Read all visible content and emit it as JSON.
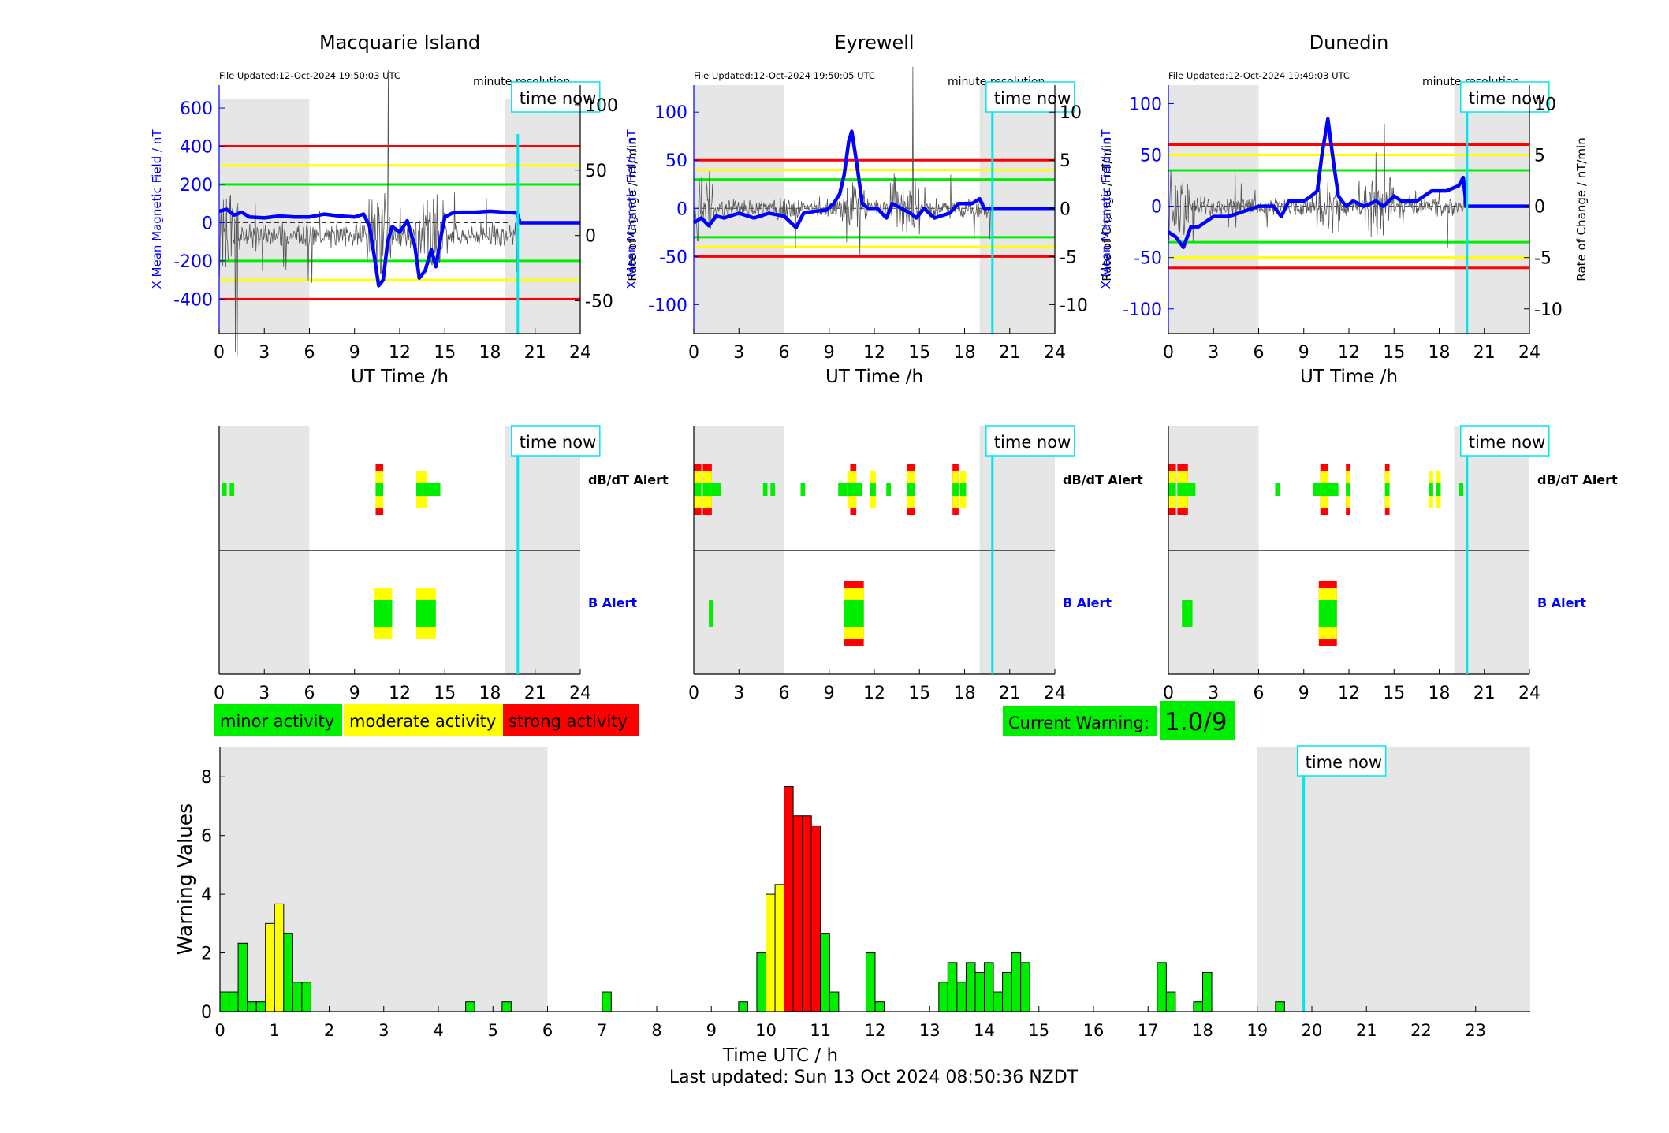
{
  "stations": [
    {
      "name": "Macquarie Island",
      "updated": "File Updated:12-Oct-2024 19:50:03 UTC",
      "resolution": "minute resolution",
      "time_now_label": "time now",
      "ylabel_left": "X Mean Magnetic Field / nT",
      "ylabel_right": "Rate of Change / nT/min",
      "xlabel": "UT Time /h",
      "dbdt_label": "dB/dT Alert",
      "b_label": "B Alert"
    },
    {
      "name": "Eyrewell",
      "updated": "File Updated:12-Oct-2024 19:50:05 UTC",
      "resolution": "minute resolution",
      "time_now_label": "time now",
      "ylabel_left": "X Mean Magnetic Field / nT",
      "ylabel_right": "Rate of Change / nT/min",
      "xlabel": "UT Time /h",
      "dbdt_label": "dB/dT Alert",
      "b_label": "B Alert"
    },
    {
      "name": "Dunedin",
      "updated": "File Updated:12-Oct-2024 19:49:03 UTC",
      "resolution": "minute resolution",
      "time_now_label": "time now",
      "ylabel_left": "X Mean Magnetic Field / nT",
      "ylabel_right": "Rate of Change / nT/min",
      "xlabel": "UT Time /h",
      "dbdt_label": "dB/dT Alert",
      "b_label": "B Alert"
    }
  ],
  "legend": {
    "minor": "minor activity",
    "moderate": "moderate activity",
    "strong": "strong activity"
  },
  "current_warning": {
    "label": "Current Warning:",
    "value": "1.0/9"
  },
  "footer": "Last updated: Sun 13 Oct 2024 08:50:36 NZDT",
  "colors": {
    "minor": "#00ee00",
    "moderate": "#ffff00",
    "strong": "#ff0000",
    "time_now": "#00e5ee",
    "field": "#0000ff",
    "shade": "#e6e6e6"
  },
  "chart_data": [
    {
      "type": "line",
      "station": "Macquarie Island",
      "title": "Macquarie Island",
      "xlabel": "UT Time /h",
      "ylabel": "X Mean Magnetic Field / nT",
      "ylabel_right": "Rate of Change / nT/min",
      "xlim": [
        0,
        24
      ],
      "xticks": [
        0,
        3,
        6,
        9,
        12,
        15,
        18,
        21,
        24
      ],
      "ylim": [
        -580,
        720
      ],
      "yticks": [
        -400,
        -200,
        0,
        200,
        400,
        600
      ],
      "ylim_right": [
        -75,
        115
      ],
      "yticks_right": [
        -50,
        0,
        50,
        100
      ],
      "thresholds": [
        {
          "value": 400,
          "color": "red"
        },
        {
          "value": 300,
          "color": "yellow"
        },
        {
          "value": 200,
          "color": "green"
        },
        {
          "value": -200,
          "color": "green"
        },
        {
          "value": -300,
          "color": "yellow"
        },
        {
          "value": -400,
          "color": "red"
        }
      ],
      "night_shade": [
        [
          0,
          6
        ],
        [
          19,
          24
        ]
      ],
      "time_now": 19.85,
      "series": [
        {
          "values": [
            [
              0,
              60
            ],
            [
              0.5,
              70
            ],
            [
              1,
              40
            ],
            [
              1.5,
              55
            ],
            [
              2,
              30
            ],
            [
              3,
              25
            ],
            [
              4,
              35
            ],
            [
              5,
              30
            ],
            [
              6,
              30
            ],
            [
              7,
              45
            ],
            [
              8,
              35
            ],
            [
              9,
              30
            ],
            [
              9.6,
              45
            ],
            [
              10,
              -20
            ],
            [
              10.3,
              -170
            ],
            [
              10.6,
              -330
            ],
            [
              10.9,
              -300
            ],
            [
              11.2,
              -100
            ],
            [
              11.5,
              -20
            ],
            [
              12,
              -50
            ],
            [
              12.5,
              10
            ],
            [
              13,
              -120
            ],
            [
              13.3,
              -290
            ],
            [
              13.7,
              -250
            ],
            [
              14.1,
              -140
            ],
            [
              14.4,
              -230
            ],
            [
              14.7,
              -90
            ],
            [
              15,
              30
            ],
            [
              15.5,
              50
            ],
            [
              16,
              55
            ],
            [
              17,
              55
            ],
            [
              18,
              60
            ],
            [
              19,
              55
            ],
            [
              19.8,
              50
            ],
            [
              20,
              0
            ],
            [
              24,
              0
            ]
          ]
        }
      ]
    },
    {
      "type": "line",
      "station": "Eyrewell",
      "title": "Eyrewell",
      "xlabel": "UT Time /h",
      "ylabel": "X Mean Magnetic Field / nT",
      "ylabel_right": "Rate of Change / nT/min",
      "xlim": [
        0,
        24
      ],
      "xticks": [
        0,
        3,
        6,
        9,
        12,
        15,
        18,
        21,
        24
      ],
      "ylim": [
        -130,
        128
      ],
      "yticks": [
        -100,
        -50,
        0,
        50,
        100
      ],
      "ylim_right": [
        -13,
        12.8
      ],
      "yticks_right": [
        -10,
        -5,
        0,
        5,
        10
      ],
      "thresholds": [
        {
          "value": 50,
          "color": "red"
        },
        {
          "value": 40,
          "color": "yellow"
        },
        {
          "value": 30,
          "color": "green"
        },
        {
          "value": -30,
          "color": "green"
        },
        {
          "value": -40,
          "color": "yellow"
        },
        {
          "value": -50,
          "color": "red"
        }
      ],
      "night_shade": [
        [
          0,
          6
        ],
        [
          19,
          24
        ]
      ],
      "time_now": 19.85,
      "series": [
        {
          "values": [
            [
              0,
              -15
            ],
            [
              0.5,
              -10
            ],
            [
              1,
              -18
            ],
            [
              1.5,
              -8
            ],
            [
              2,
              -10
            ],
            [
              3,
              -5
            ],
            [
              4,
              -10
            ],
            [
              5,
              -5
            ],
            [
              6,
              -8
            ],
            [
              6.8,
              -20
            ],
            [
              7.3,
              -5
            ],
            [
              8,
              -3
            ],
            [
              8.8,
              -2
            ],
            [
              9.3,
              5
            ],
            [
              9.7,
              15
            ],
            [
              10,
              35
            ],
            [
              10.3,
              70
            ],
            [
              10.5,
              80
            ],
            [
              10.8,
              50
            ],
            [
              11.2,
              5
            ],
            [
              11.6,
              0
            ],
            [
              12.2,
              0
            ],
            [
              12.8,
              -10
            ],
            [
              13.2,
              5
            ],
            [
              13.8,
              0
            ],
            [
              14.4,
              -5
            ],
            [
              14.8,
              -10
            ],
            [
              15.3,
              0
            ],
            [
              16,
              -10
            ],
            [
              17,
              -5
            ],
            [
              17.6,
              5
            ],
            [
              18.5,
              5
            ],
            [
              19,
              10
            ],
            [
              19.3,
              0
            ],
            [
              24,
              0
            ]
          ]
        }
      ]
    },
    {
      "type": "line",
      "station": "Dunedin",
      "title": "Dunedin",
      "xlabel": "UT Time /h",
      "ylabel": "X Mean Magnetic Field / nT",
      "ylabel_right": "Rate of Change / nT/min",
      "xlim": [
        0,
        24
      ],
      "xticks": [
        0,
        3,
        6,
        9,
        12,
        15,
        18,
        21,
        24
      ],
      "ylim": [
        -124,
        118
      ],
      "yticks": [
        -100,
        -50,
        0,
        50,
        100
      ],
      "ylim_right": [
        -12.4,
        11.8
      ],
      "yticks_right": [
        -10,
        -5,
        0,
        5,
        10
      ],
      "thresholds": [
        {
          "value": 60,
          "color": "red"
        },
        {
          "value": 50,
          "color": "yellow"
        },
        {
          "value": 35,
          "color": "green"
        },
        {
          "value": -35,
          "color": "green"
        },
        {
          "value": -50,
          "color": "yellow"
        },
        {
          "value": -60,
          "color": "red"
        }
      ],
      "night_shade": [
        [
          0,
          6
        ],
        [
          19,
          24
        ]
      ],
      "time_now": 19.85,
      "series": [
        {
          "values": [
            [
              0,
              -25
            ],
            [
              0.5,
              -30
            ],
            [
              1,
              -40
            ],
            [
              1.5,
              -20
            ],
            [
              2,
              -20
            ],
            [
              3,
              -10
            ],
            [
              4,
              -10
            ],
            [
              5,
              -5
            ],
            [
              6,
              0
            ],
            [
              7,
              0
            ],
            [
              7.5,
              -10
            ],
            [
              8,
              5
            ],
            [
              9,
              5
            ],
            [
              9.5,
              10
            ],
            [
              9.9,
              15
            ],
            [
              10.2,
              50
            ],
            [
              10.6,
              85
            ],
            [
              11,
              40
            ],
            [
              11.3,
              10
            ],
            [
              11.8,
              0
            ],
            [
              12.3,
              5
            ],
            [
              13,
              0
            ],
            [
              13.8,
              5
            ],
            [
              14.3,
              0
            ],
            [
              15,
              10
            ],
            [
              15.5,
              5
            ],
            [
              16.5,
              5
            ],
            [
              17.5,
              15
            ],
            [
              18.5,
              15
            ],
            [
              19.3,
              20
            ],
            [
              19.6,
              28
            ],
            [
              19.8,
              0
            ],
            [
              24,
              0
            ]
          ]
        }
      ]
    },
    {
      "type": "bar",
      "title": "",
      "xlabel": "Time UTC / h",
      "ylabel": "Warning Values",
      "xlim": [
        0,
        24
      ],
      "ylim": [
        0,
        9
      ],
      "xticks": [
        0,
        1,
        2,
        3,
        4,
        5,
        6,
        7,
        8,
        9,
        10,
        11,
        12,
        13,
        14,
        15,
        16,
        17,
        18,
        19,
        20,
        21,
        22,
        23
      ],
      "yticks": [
        0,
        2,
        4,
        6,
        8
      ],
      "night_shade": [
        [
          0,
          6
        ],
        [
          19,
          24
        ]
      ],
      "time_now": 19.85,
      "bin_width": 0.1667,
      "bars": [
        {
          "x": 0,
          "value": 0.67
        },
        {
          "x": 0.167,
          "value": 0.67
        },
        {
          "x": 0.333,
          "value": 2.33
        },
        {
          "x": 0.5,
          "value": 0.33
        },
        {
          "x": 0.667,
          "value": 0.33
        },
        {
          "x": 0.833,
          "value": 3.0
        },
        {
          "x": 1.0,
          "value": 3.67
        },
        {
          "x": 1.167,
          "value": 2.67
        },
        {
          "x": 1.333,
          "value": 1.0
        },
        {
          "x": 1.5,
          "value": 1.0
        },
        {
          "x": 4.5,
          "value": 0.33
        },
        {
          "x": 5.167,
          "value": 0.33
        },
        {
          "x": 7.0,
          "value": 0.67
        },
        {
          "x": 9.5,
          "value": 0.33
        },
        {
          "x": 9.833,
          "value": 2.0
        },
        {
          "x": 10.0,
          "value": 4.0
        },
        {
          "x": 10.167,
          "value": 4.33
        },
        {
          "x": 10.333,
          "value": 7.67
        },
        {
          "x": 10.5,
          "value": 6.67
        },
        {
          "x": 10.667,
          "value": 6.67
        },
        {
          "x": 10.833,
          "value": 6.33
        },
        {
          "x": 11.0,
          "value": 2.67
        },
        {
          "x": 11.167,
          "value": 0.67
        },
        {
          "x": 11.833,
          "value": 2.0
        },
        {
          "x": 12.0,
          "value": 0.33
        },
        {
          "x": 13.167,
          "value": 1.0
        },
        {
          "x": 13.333,
          "value": 1.67
        },
        {
          "x": 13.5,
          "value": 1.0
        },
        {
          "x": 13.667,
          "value": 1.67
        },
        {
          "x": 13.833,
          "value": 1.33
        },
        {
          "x": 14.0,
          "value": 1.67
        },
        {
          "x": 14.167,
          "value": 0.67
        },
        {
          "x": 14.333,
          "value": 1.33
        },
        {
          "x": 14.5,
          "value": 2.0
        },
        {
          "x": 14.667,
          "value": 1.67
        },
        {
          "x": 17.167,
          "value": 1.67
        },
        {
          "x": 17.333,
          "value": 0.67
        },
        {
          "x": 17.833,
          "value": 0.33
        },
        {
          "x": 18.0,
          "value": 1.33
        },
        {
          "x": 19.333,
          "value": 0.33
        }
      ]
    }
  ],
  "alerts": [
    {
      "station": "Macquarie Island",
      "dbdt": [
        {
          "start": 0.2,
          "end": 0.5,
          "level": "minor"
        },
        {
          "start": 0.7,
          "end": 1.0,
          "level": "minor"
        },
        {
          "start": 10.4,
          "end": 10.9,
          "level": "strong"
        },
        {
          "start": 13.1,
          "end": 13.5,
          "level": "moderate"
        },
        {
          "start": 13.5,
          "end": 13.8,
          "level": "moderate"
        },
        {
          "start": 13.8,
          "end": 14.7,
          "level": "minor"
        }
      ],
      "b": [
        {
          "start": 10.3,
          "end": 11.5,
          "level": "moderate"
        },
        {
          "start": 13.1,
          "end": 14.4,
          "level": "moderate"
        }
      ]
    },
    {
      "station": "Eyrewell",
      "dbdt": [
        {
          "start": 0,
          "end": 0.5,
          "level": "strong"
        },
        {
          "start": 0.6,
          "end": 1.2,
          "level": "strong"
        },
        {
          "start": 1.2,
          "end": 1.8,
          "level": "minor"
        },
        {
          "start": 4.6,
          "end": 4.9,
          "level": "minor"
        },
        {
          "start": 5.1,
          "end": 5.4,
          "level": "minor"
        },
        {
          "start": 7.1,
          "end": 7.4,
          "level": "minor"
        },
        {
          "start": 9.6,
          "end": 10.2,
          "level": "minor"
        },
        {
          "start": 10.2,
          "end": 10.8,
          "level": "moderate"
        },
        {
          "start": 10.4,
          "end": 10.8,
          "level": "strong"
        },
        {
          "start": 10.8,
          "end": 11.2,
          "level": "minor"
        },
        {
          "start": 11.7,
          "end": 12.1,
          "level": "moderate"
        },
        {
          "start": 12.8,
          "end": 13.1,
          "level": "minor"
        },
        {
          "start": 14.2,
          "end": 14.7,
          "level": "strong"
        },
        {
          "start": 17.2,
          "end": 17.6,
          "level": "strong"
        },
        {
          "start": 17.7,
          "end": 18.1,
          "level": "moderate"
        }
      ],
      "b": [
        {
          "start": 1.0,
          "end": 1.3,
          "level": "minor"
        },
        {
          "start": 10.0,
          "end": 11.3,
          "level": "strong"
        }
      ]
    },
    {
      "station": "Dunedin",
      "dbdt": [
        {
          "start": 0,
          "end": 0.5,
          "level": "strong"
        },
        {
          "start": 0.6,
          "end": 1.3,
          "level": "strong"
        },
        {
          "start": 1.3,
          "end": 1.8,
          "level": "minor"
        },
        {
          "start": 7.1,
          "end": 7.4,
          "level": "minor"
        },
        {
          "start": 9.6,
          "end": 10.1,
          "level": "minor"
        },
        {
          "start": 10.1,
          "end": 10.6,
          "level": "strong"
        },
        {
          "start": 10.6,
          "end": 11.3,
          "level": "minor"
        },
        {
          "start": 11.8,
          "end": 12.1,
          "level": "strong"
        },
        {
          "start": 14.4,
          "end": 14.7,
          "level": "strong"
        },
        {
          "start": 17.3,
          "end": 17.6,
          "level": "moderate"
        },
        {
          "start": 17.8,
          "end": 18.1,
          "level": "moderate"
        },
        {
          "start": 19.3,
          "end": 19.6,
          "level": "minor"
        }
      ],
      "b": [
        {
          "start": 0.9,
          "end": 1.6,
          "level": "minor"
        },
        {
          "start": 10.0,
          "end": 11.2,
          "level": "strong"
        }
      ]
    }
  ]
}
